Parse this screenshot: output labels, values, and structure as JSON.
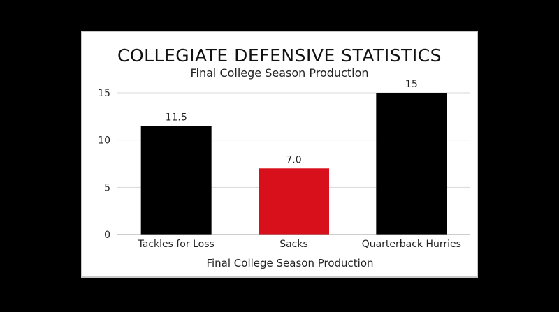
{
  "chart_data": {
    "type": "bar",
    "title": "COLLEGIATE DEFENSIVE STATISTICS",
    "subtitle": "Final College Season Production",
    "xlabel": "Final College Season Production",
    "ylabel": "",
    "categories": [
      "Tackles for Loss",
      "Sacks",
      "Quarterback Hurries"
    ],
    "values": [
      11.5,
      7.0,
      15
    ],
    "value_labels": [
      "11.5",
      "7.0",
      "15"
    ],
    "bar_colors": [
      "#000000",
      "#d7101c",
      "#000000"
    ],
    "ylim": [
      0,
      15
    ],
    "yticks": [
      0,
      5,
      10,
      15
    ],
    "grid": true,
    "legend": "none"
  },
  "colors": {
    "background": "#000000",
    "panel": "#ffffff",
    "accent_red": "#d7101c"
  }
}
